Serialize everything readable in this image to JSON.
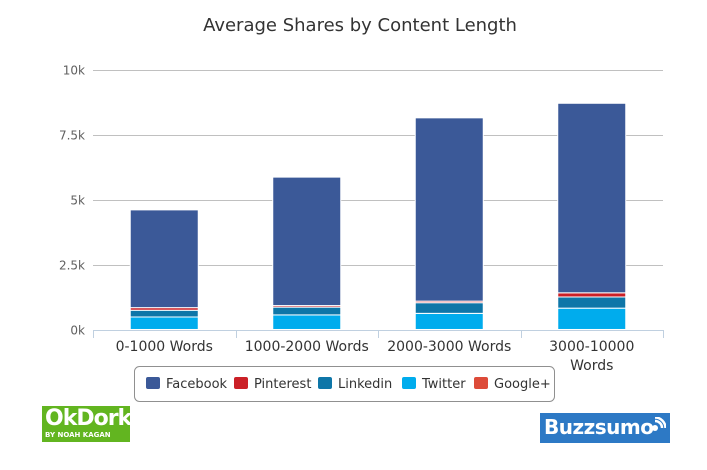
{
  "chart_data": {
    "type": "bar",
    "stacked": true,
    "title": "Average Shares by Content Length",
    "categories": [
      "0-1000 Words",
      "1000-2000 Words",
      "2000-3000 Words",
      "3000-10000 Words"
    ],
    "category_lines": [
      [
        "0-1000 Words"
      ],
      [
        "1000-2000 Words"
      ],
      [
        "2000-3000 Words"
      ],
      [
        "3000-10000",
        "Words"
      ]
    ],
    "ylim": [
      0,
      10000
    ],
    "yticks": [
      0,
      2500,
      5000,
      7500,
      10000
    ],
    "ytick_labels": [
      "0k",
      "2.5k",
      "5k",
      "7.5k",
      "10k"
    ],
    "grid": true,
    "legend_position": "bottom",
    "series": [
      {
        "name": "Google+",
        "color": "#dd4b39",
        "values": [
          20,
          20,
          20,
          20
        ]
      },
      {
        "name": "Twitter",
        "color": "#00aced",
        "values": [
          480,
          560,
          620,
          820
        ]
      },
      {
        "name": "Linkedin",
        "color": "#0e76a8",
        "values": [
          260,
          300,
          410,
          430
        ]
      },
      {
        "name": "Pinterest",
        "color": "#cb2027",
        "values": [
          100,
          60,
          60,
          160
        ]
      },
      {
        "name": "Facebook",
        "color": "#3b5998",
        "values": [
          3760,
          4940,
          7050,
          7290
        ]
      }
    ],
    "legend_order": [
      "Facebook",
      "Pinterest",
      "Linkedin",
      "Twitter",
      "Google+"
    ]
  },
  "logos": {
    "okdork": {
      "main": "OkDork",
      "sub": "BY NOAH KAGAN",
      "color": "#62b520"
    },
    "buzzsumo": {
      "main": "Buzzsumo",
      "color": "#2d79c5",
      "icon": "signal-icon"
    }
  }
}
